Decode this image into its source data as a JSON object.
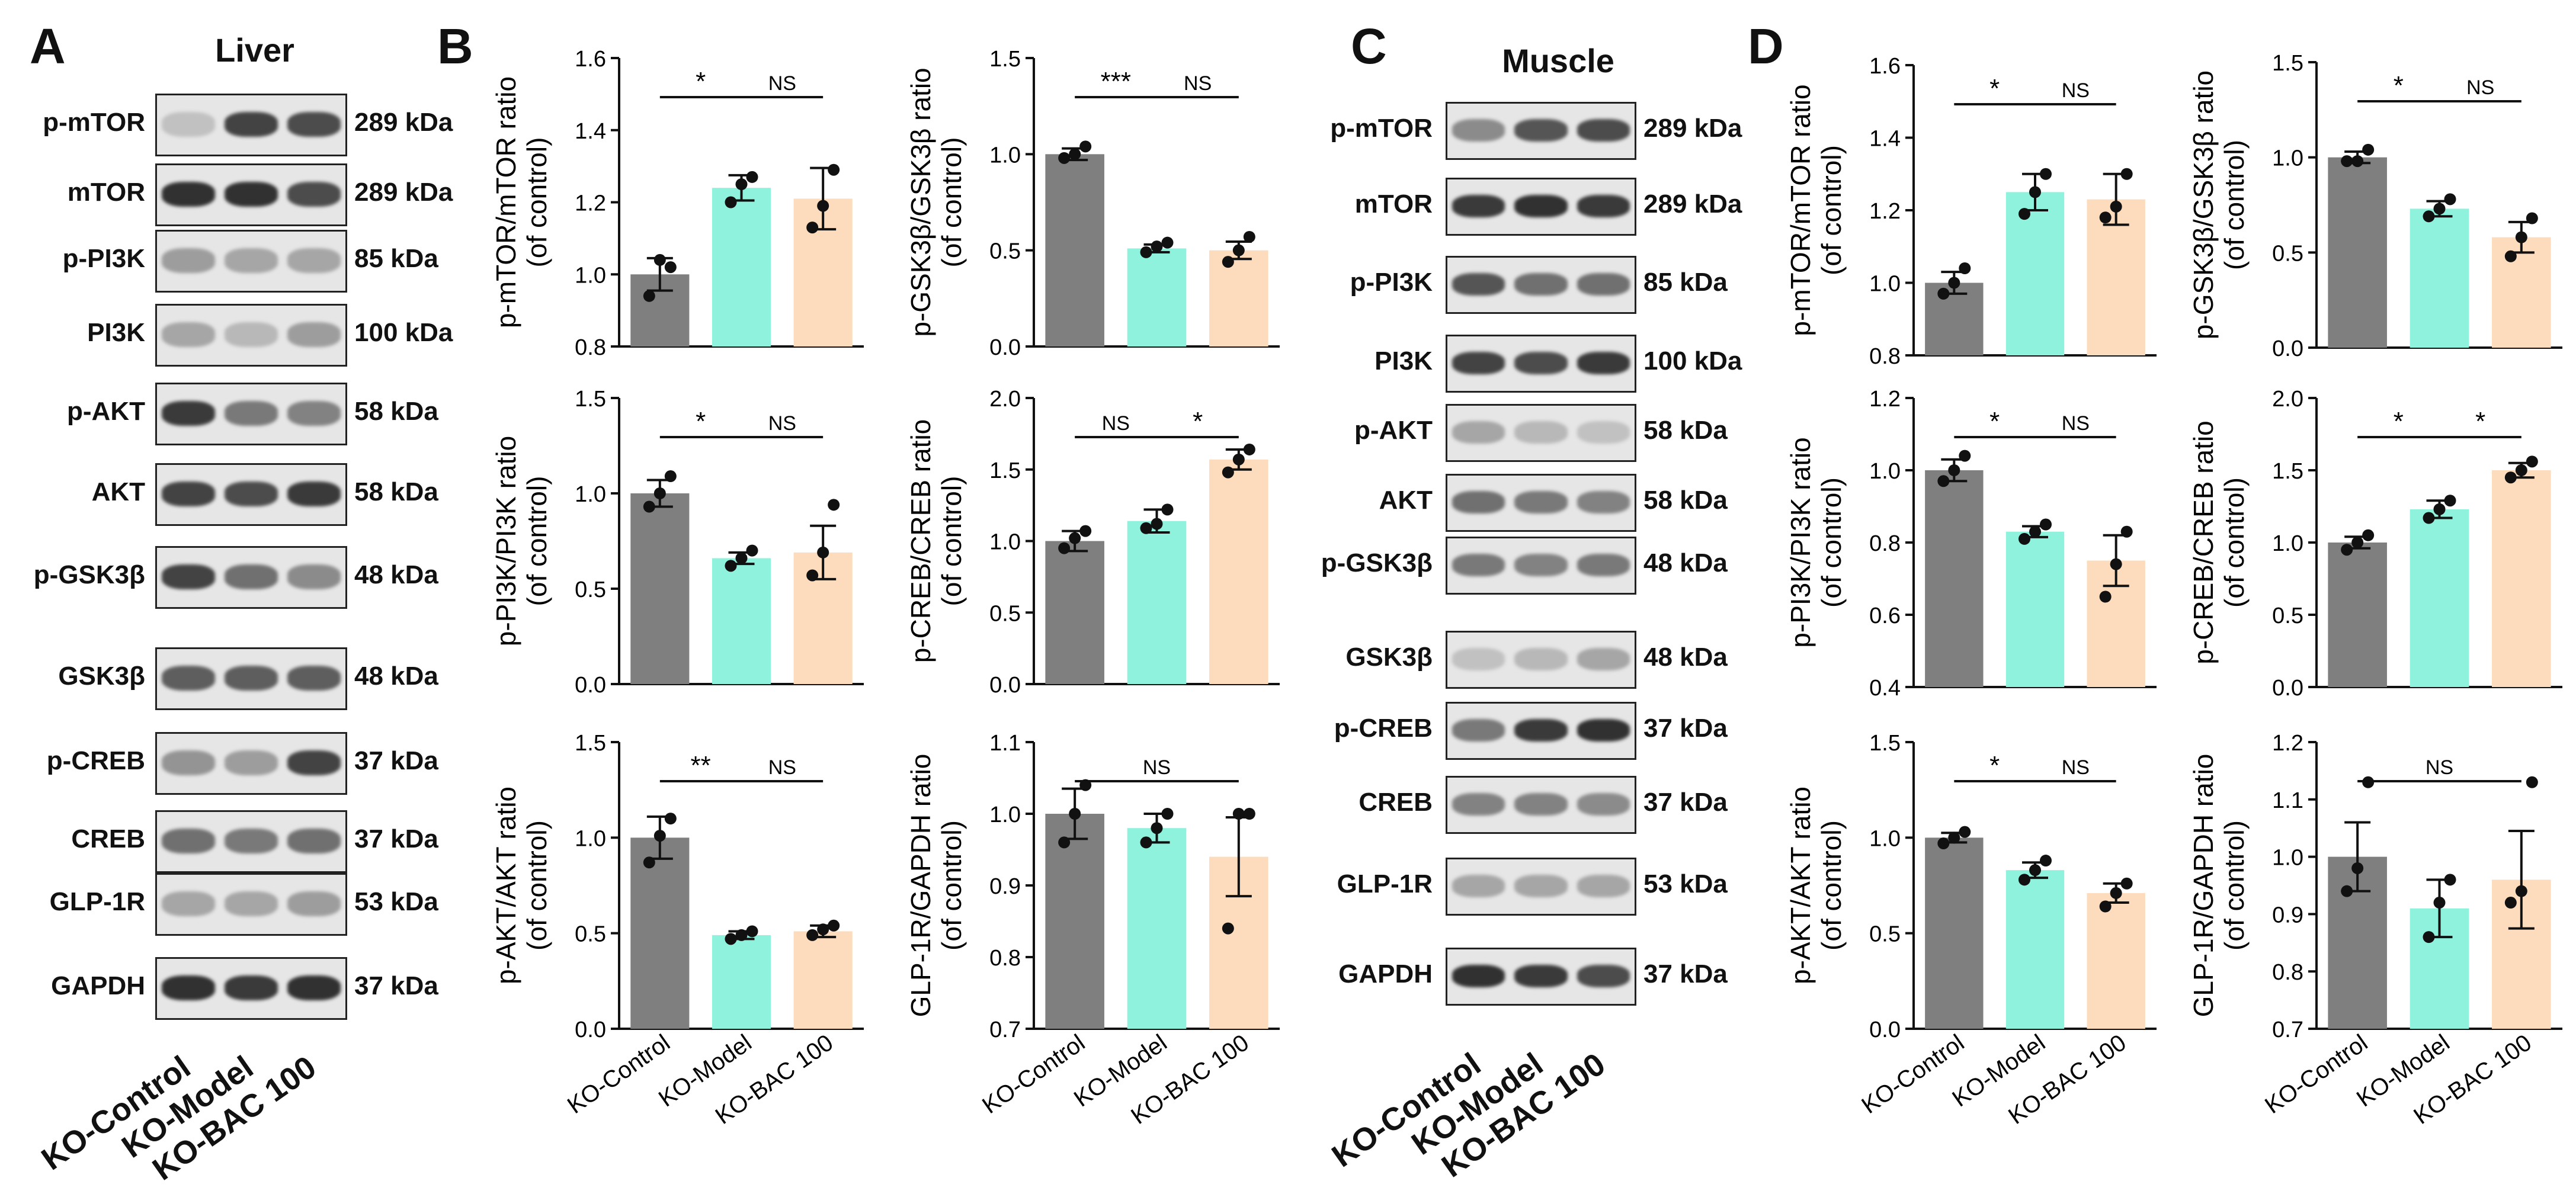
{
  "panels": {
    "A": "A",
    "B": "B",
    "C": "C",
    "D": "D"
  },
  "liver": {
    "title": "Liver",
    "blots": [
      {
        "name": "p-mTOR",
        "kda": "289 kDa"
      },
      {
        "name": "mTOR",
        "kda": "289 kDa"
      },
      {
        "name": "p-PI3K",
        "kda": "85 kDa"
      },
      {
        "name": "PI3K",
        "kda": "100 kDa"
      },
      {
        "name": "p-AKT",
        "kda": "58 kDa"
      },
      {
        "name": "AKT",
        "kda": "58 kDa"
      },
      {
        "name": "p-GSK3β",
        "kda": "48 kDa"
      },
      {
        "name": "GSK3β",
        "kda": "48 kDa"
      },
      {
        "name": "p-CREB",
        "kda": "37 kDa"
      },
      {
        "name": "CREB",
        "kda": "37 kDa"
      },
      {
        "name": "GLP-1R",
        "kda": "53 kDa"
      },
      {
        "name": "GAPDH",
        "kda": "37 kDa"
      }
    ],
    "lanes": [
      "KO-Control",
      "KO-Model",
      "KO-BAC 100"
    ]
  },
  "muscle": {
    "title": "Muscle",
    "blots": [
      {
        "name": "p-mTOR",
        "kda": "289 kDa"
      },
      {
        "name": "mTOR",
        "kda": "289 kDa"
      },
      {
        "name": "p-PI3K",
        "kda": "85 kDa"
      },
      {
        "name": "PI3K",
        "kda": "100 kDa"
      },
      {
        "name": "p-AKT",
        "kda": "58 kDa"
      },
      {
        "name": "AKT",
        "kda": "58 kDa"
      },
      {
        "name": "p-GSK3β",
        "kda": "48 kDa"
      },
      {
        "name": "GSK3β",
        "kda": "48 kDa"
      },
      {
        "name": "p-CREB",
        "kda": "37 kDa"
      },
      {
        "name": "CREB",
        "kda": "37 kDa"
      },
      {
        "name": "GLP-1R",
        "kda": "53 kDa"
      },
      {
        "name": "GAPDH",
        "kda": "37 kDa"
      }
    ],
    "lanes": [
      "KO-Control",
      "KO-Model",
      "KO-BAC 100"
    ]
  },
  "colors": {
    "KO-Control": "#7f7f7f",
    "KO-Model": "#8ff2dc",
    "KO-BAC 100": "#fcdcbc"
  },
  "chart_data": [
    {
      "panel": "B",
      "type": "bar",
      "categories": [
        "KO-Control",
        "KO-Model",
        "KO-BAC 100"
      ],
      "values": [
        1.0,
        1.24,
        1.21
      ],
      "errors": [
        0.045,
        0.035,
        0.085
      ],
      "points": [
        [
          0.94,
          1.04,
          1.02
        ],
        [
          1.2,
          1.25,
          1.27
        ],
        [
          1.13,
          1.19,
          1.29
        ]
      ],
      "ylabel": "p-mTOR/mTOR ratio\n(of control)",
      "ylim": [
        0.8,
        1.6
      ],
      "yticks": [
        0.8,
        1.0,
        1.2,
        1.4,
        1.6
      ],
      "sig": [
        {
          "from": 0,
          "to": 1,
          "label": "*"
        },
        {
          "from": 1,
          "to": 2,
          "label": "NS"
        }
      ]
    },
    {
      "panel": "B",
      "type": "bar",
      "categories": [
        "KO-Control",
        "KO-Model",
        "KO-BAC 100"
      ],
      "values": [
        1.0,
        0.51,
        0.5
      ],
      "errors": [
        0.03,
        0.02,
        0.045
      ],
      "points": [
        [
          0.98,
          1.0,
          1.04
        ],
        [
          0.49,
          0.52,
          0.54
        ],
        [
          0.44,
          0.5,
          0.57
        ]
      ],
      "ylabel": "p-GSK3β/GSK3β ratio\n(of control)",
      "ylim": [
        0.0,
        1.5
      ],
      "yticks": [
        0.0,
        0.5,
        1.0,
        1.5
      ],
      "sig": [
        {
          "from": 0,
          "to": 1,
          "label": "***"
        },
        {
          "from": 1,
          "to": 2,
          "label": "NS"
        }
      ]
    },
    {
      "panel": "B",
      "type": "bar",
      "categories": [
        "KO-Control",
        "KO-Model",
        "KO-BAC 100"
      ],
      "values": [
        1.0,
        0.66,
        0.69
      ],
      "errors": [
        0.07,
        0.03,
        0.14
      ],
      "points": [
        [
          0.93,
          1.0,
          1.09
        ],
        [
          0.62,
          0.66,
          0.7
        ],
        [
          0.57,
          0.69,
          0.94
        ]
      ],
      "ylabel": "p-PI3K/PI3K ratio\n(of control)",
      "ylim": [
        0.0,
        1.5
      ],
      "yticks": [
        0.0,
        0.5,
        1.0,
        1.5
      ],
      "sig": [
        {
          "from": 0,
          "to": 1,
          "label": "*"
        },
        {
          "from": 1,
          "to": 2,
          "label": "NS"
        }
      ]
    },
    {
      "panel": "B",
      "type": "bar",
      "categories": [
        "KO-Control",
        "KO-Model",
        "KO-BAC 100"
      ],
      "values": [
        1.0,
        1.14,
        1.57
      ],
      "errors": [
        0.07,
        0.08,
        0.07
      ],
      "points": [
        [
          0.95,
          1.02,
          1.07
        ],
        [
          1.09,
          1.12,
          1.22
        ],
        [
          1.48,
          1.57,
          1.64
        ]
      ],
      "ylabel": "p-CREB/CREB ratio\n(of control)",
      "ylim": [
        0.0,
        2.0
      ],
      "yticks": [
        0.0,
        0.5,
        1.0,
        1.5,
        2.0
      ],
      "sig": [
        {
          "from": 0,
          "to": 1,
          "label": "NS"
        },
        {
          "from": 1,
          "to": 2,
          "label": "*"
        }
      ]
    },
    {
      "panel": "B",
      "type": "bar",
      "categories": [
        "KO-Control",
        "KO-Model",
        "KO-BAC 100"
      ],
      "values": [
        1.0,
        0.49,
        0.51
      ],
      "errors": [
        0.11,
        0.02,
        0.03
      ],
      "points": [
        [
          0.87,
          1.01,
          1.1
        ],
        [
          0.47,
          0.49,
          0.51
        ],
        [
          0.49,
          0.52,
          0.54
        ]
      ],
      "ylabel": "p-AKT/AKT ratio\n(of control)",
      "ylim": [
        0.0,
        1.5
      ],
      "yticks": [
        0.0,
        0.5,
        1.0,
        1.5
      ],
      "sig": [
        {
          "from": 0,
          "to": 1,
          "label": "**"
        },
        {
          "from": 1,
          "to": 2,
          "label": "NS"
        }
      ]
    },
    {
      "panel": "B",
      "type": "bar",
      "categories": [
        "KO-Control",
        "KO-Model",
        "KO-BAC 100"
      ],
      "values": [
        1.0,
        0.98,
        0.94
      ],
      "errors": [
        0.035,
        0.02,
        0.055
      ],
      "points": [
        [
          0.96,
          1.0,
          1.04
        ],
        [
          0.96,
          0.98,
          1.0
        ],
        [
          0.84,
          1.0,
          1.0
        ]
      ],
      "ylabel": "GLP-1R/GAPDH ratio\n(of control)",
      "ylim": [
        0.7,
        1.1
      ],
      "yticks": [
        0.7,
        0.8,
        0.9,
        1.0,
        1.1
      ],
      "sig": [
        {
          "from": 0,
          "to": 2,
          "label": "NS"
        }
      ]
    },
    {
      "panel": "D",
      "type": "bar",
      "categories": [
        "KO-Control",
        "KO-Model",
        "KO-BAC 100"
      ],
      "values": [
        1.0,
        1.25,
        1.23
      ],
      "errors": [
        0.03,
        0.05,
        0.07
      ],
      "points": [
        [
          0.97,
          1.0,
          1.04
        ],
        [
          1.19,
          1.25,
          1.3
        ],
        [
          1.18,
          1.21,
          1.3
        ]
      ],
      "ylabel": "p-mTOR/mTOR ratio\n(of control)",
      "ylim": [
        0.8,
        1.6
      ],
      "yticks": [
        0.8,
        1.0,
        1.2,
        1.4,
        1.6
      ],
      "sig": [
        {
          "from": 0,
          "to": 1,
          "label": "*"
        },
        {
          "from": 1,
          "to": 2,
          "label": "NS"
        }
      ]
    },
    {
      "panel": "D",
      "type": "bar",
      "categories": [
        "KO-Control",
        "KO-Model",
        "KO-BAC 100"
      ],
      "values": [
        1.0,
        0.73,
        0.58
      ],
      "errors": [
        0.03,
        0.04,
        0.08
      ],
      "points": [
        [
          0.98,
          0.98,
          1.04
        ],
        [
          0.69,
          0.73,
          0.78
        ],
        [
          0.48,
          0.58,
          0.68
        ]
      ],
      "ylabel": "p-GSK3β/GSK3β ratio\n(of control)",
      "ylim": [
        0.0,
        1.5
      ],
      "yticks": [
        0.0,
        0.5,
        1.0,
        1.5
      ],
      "sig": [
        {
          "from": 0,
          "to": 1,
          "label": "*"
        },
        {
          "from": 1,
          "to": 2,
          "label": "NS"
        }
      ]
    },
    {
      "panel": "D",
      "type": "bar",
      "categories": [
        "KO-Control",
        "KO-Model",
        "KO-BAC 100"
      ],
      "values": [
        1.0,
        0.83,
        0.75
      ],
      "errors": [
        0.03,
        0.015,
        0.07
      ],
      "points": [
        [
          0.97,
          1.0,
          1.04
        ],
        [
          0.81,
          0.83,
          0.85
        ],
        [
          0.65,
          0.74,
          0.83
        ]
      ],
      "ylabel": "p-PI3K/PI3K ratio\n(of control)",
      "ylim": [
        0.4,
        1.2
      ],
      "yticks": [
        0.4,
        0.6,
        0.8,
        1.0,
        1.2
      ],
      "sig": [
        {
          "from": 0,
          "to": 1,
          "label": "*"
        },
        {
          "from": 1,
          "to": 2,
          "label": "NS"
        }
      ]
    },
    {
      "panel": "D",
      "type": "bar",
      "categories": [
        "KO-Control",
        "KO-Model",
        "KO-BAC 100"
      ],
      "values": [
        1.0,
        1.23,
        1.5
      ],
      "errors": [
        0.04,
        0.06,
        0.05
      ],
      "points": [
        [
          0.95,
          1.0,
          1.05
        ],
        [
          1.17,
          1.23,
          1.29
        ],
        [
          1.45,
          1.5,
          1.56
        ]
      ],
      "ylabel": "p-CREB/CREB ratio\n(of control)",
      "ylim": [
        0.0,
        2.0
      ],
      "yticks": [
        0.0,
        0.5,
        1.0,
        1.5,
        2.0
      ],
      "sig": [
        {
          "from": 0,
          "to": 1,
          "label": "*"
        },
        {
          "from": 1,
          "to": 2,
          "label": "*"
        }
      ]
    },
    {
      "panel": "D",
      "type": "bar",
      "categories": [
        "KO-Control",
        "KO-Model",
        "KO-BAC 100"
      ],
      "values": [
        1.0,
        0.83,
        0.71
      ],
      "errors": [
        0.025,
        0.04,
        0.05
      ],
      "points": [
        [
          0.97,
          1.0,
          1.03
        ],
        [
          0.78,
          0.83,
          0.88
        ],
        [
          0.64,
          0.71,
          0.76
        ]
      ],
      "ylabel": "p-AKT/AKT ratio\n(of control)",
      "ylim": [
        0.0,
        1.5
      ],
      "yticks": [
        0.0,
        0.5,
        1.0,
        1.5
      ],
      "sig": [
        {
          "from": 0,
          "to": 1,
          "label": "*"
        },
        {
          "from": 1,
          "to": 2,
          "label": "NS"
        }
      ]
    },
    {
      "panel": "D",
      "type": "bar",
      "categories": [
        "KO-Control",
        "KO-Model",
        "KO-BAC 100"
      ],
      "values": [
        1.0,
        0.91,
        0.96
      ],
      "errors": [
        0.06,
        0.05,
        0.085
      ],
      "points": [
        [
          0.94,
          0.98,
          1.13
        ],
        [
          0.86,
          0.92,
          0.96
        ],
        [
          0.92,
          0.94,
          1.13
        ]
      ],
      "ylabel": "GLP-1R/GAPDH ratio\n(of control)",
      "ylim": [
        0.7,
        1.2
      ],
      "yticks": [
        0.7,
        0.8,
        0.9,
        1.0,
        1.1,
        1.2
      ],
      "sig": [
        {
          "from": 0,
          "to": 2,
          "label": "NS"
        }
      ]
    }
  ]
}
